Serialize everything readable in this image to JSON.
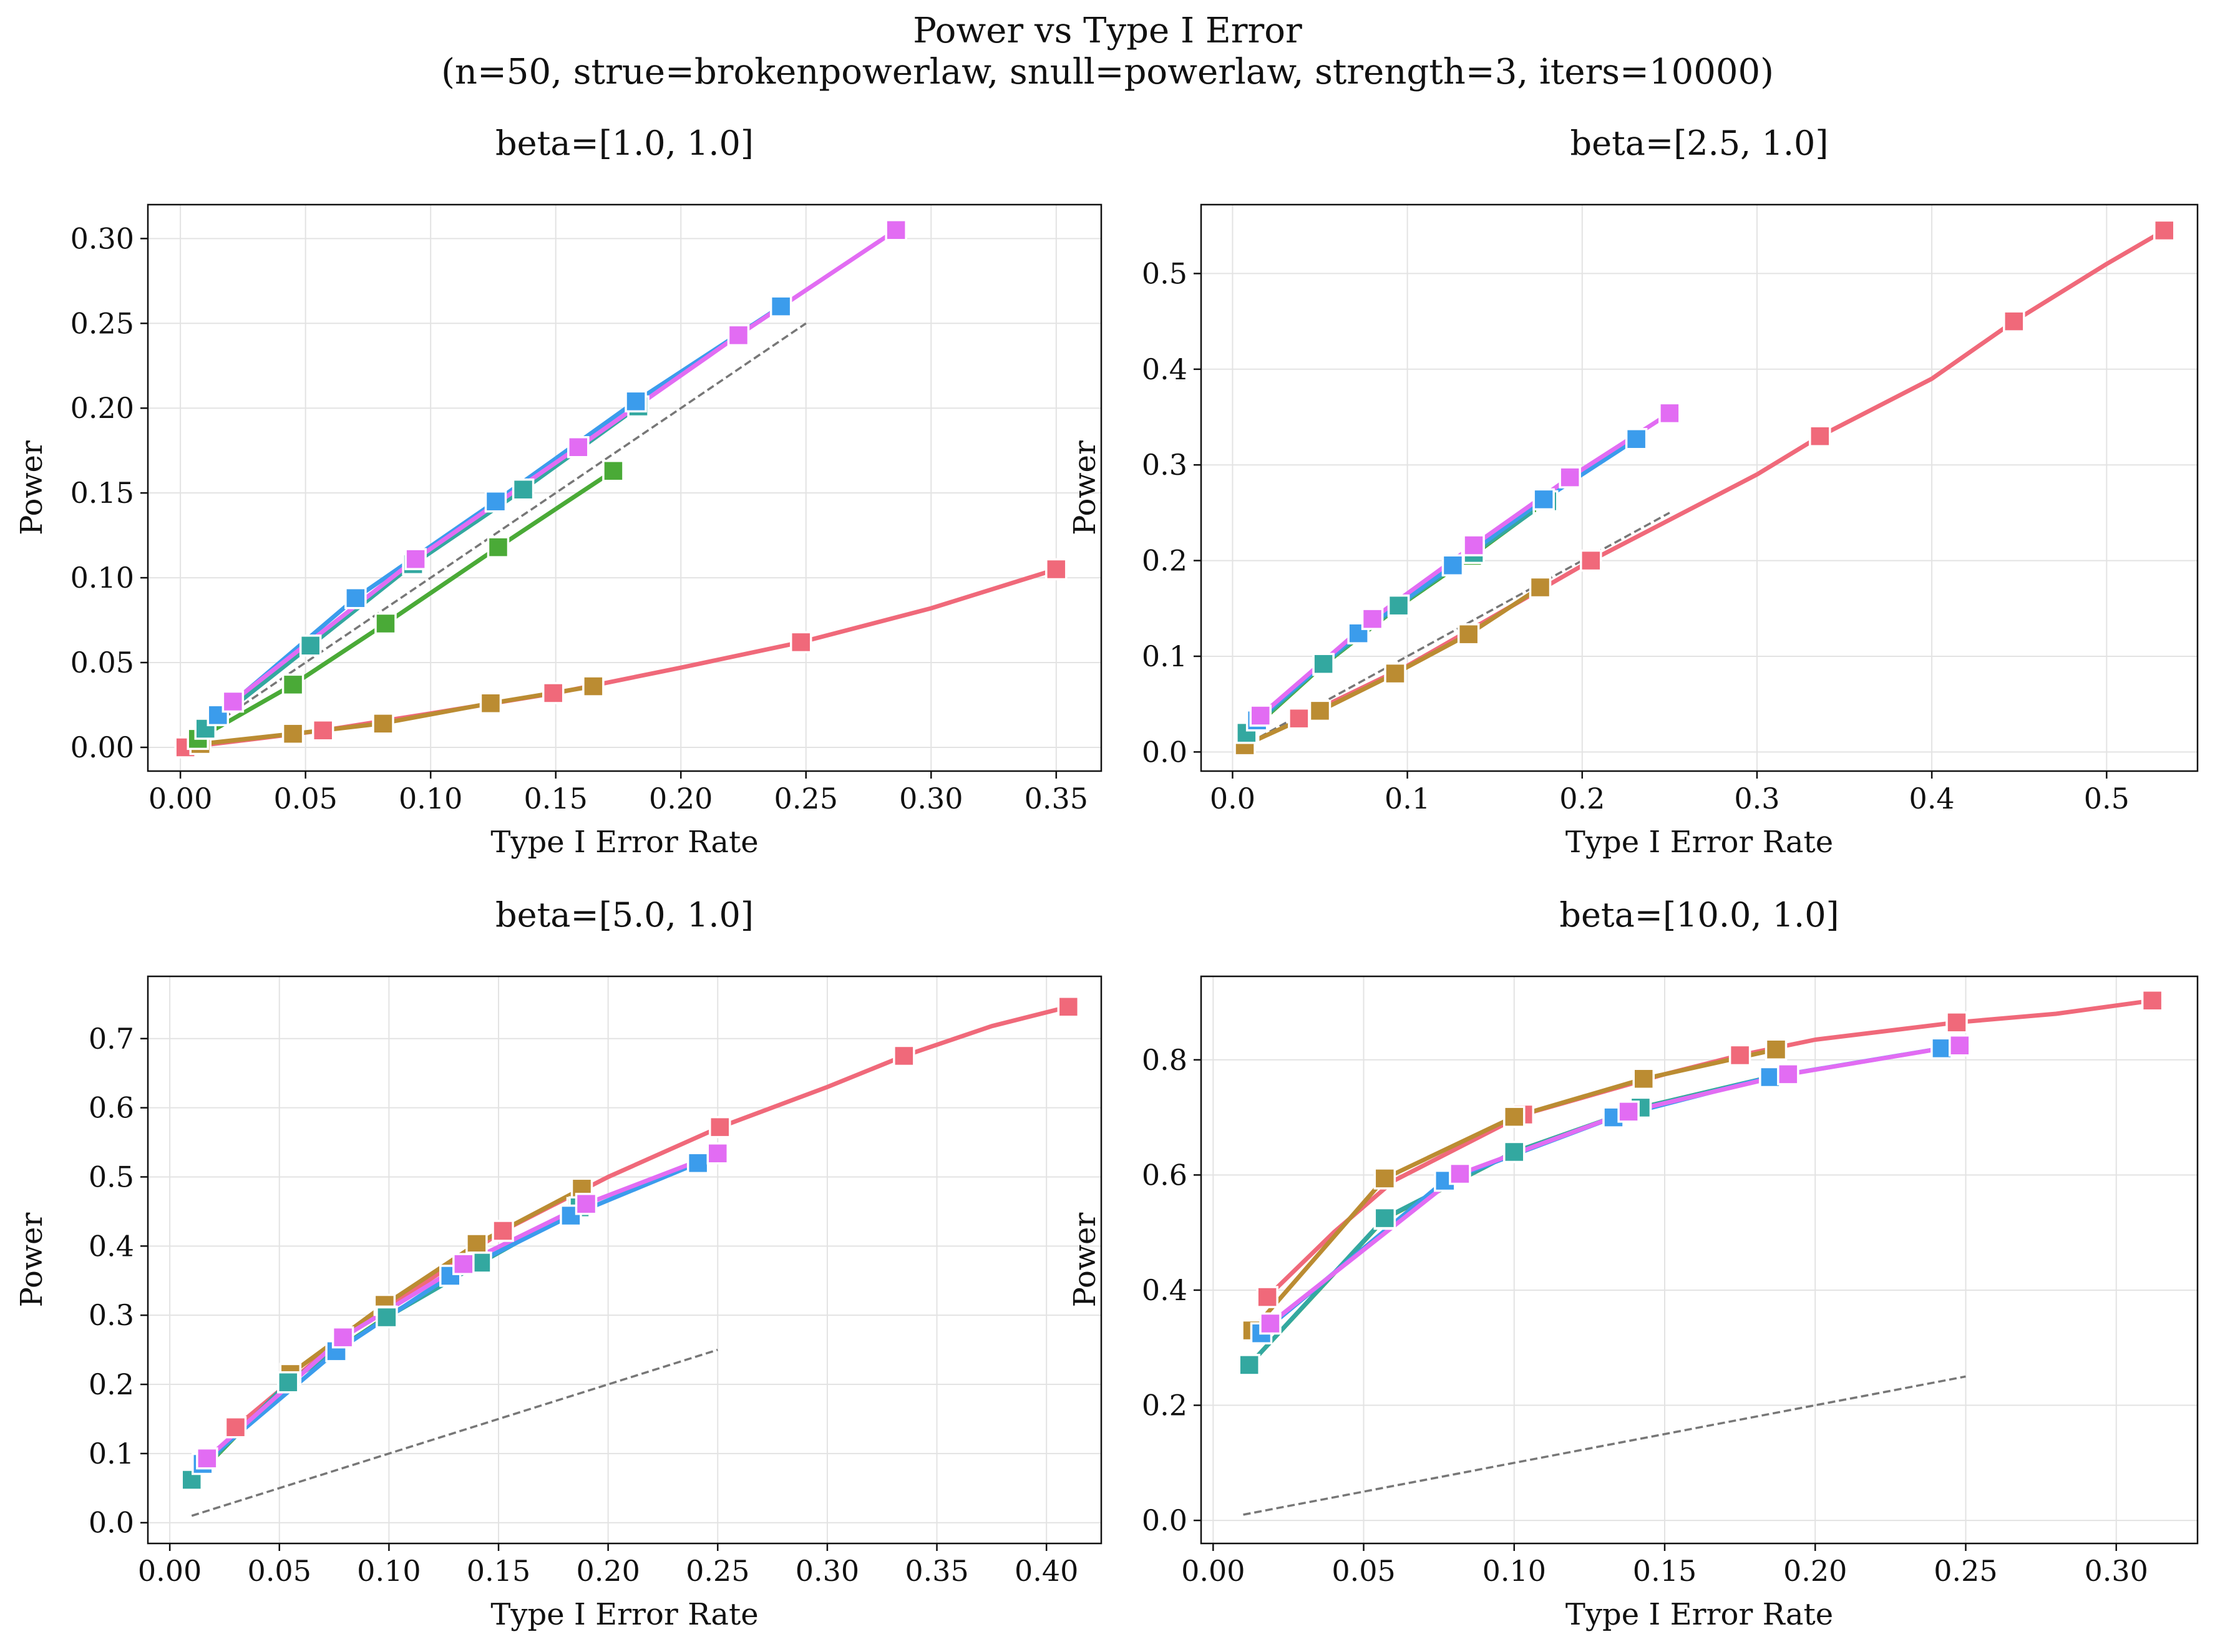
{
  "title_line1": "Power vs Type I Error",
  "title_line2": "(n=50, strue=brokenpowerlaw, snull=powerlaw, strength=3, iters=10000)",
  "colors": {
    "pink": "#F0697A",
    "olive": "#BB8C32",
    "green": "#4AAA37",
    "teal": "#33A8A0",
    "blue": "#3B9CEC",
    "magenta": "#E26CF3",
    "reference": "#777777",
    "grid": "#E3E3E3"
  },
  "chart_data": [
    {
      "type": "line",
      "title": "beta=[1.0, 1.0]",
      "xlabel": "Type I Error Rate",
      "ylabel": "Power",
      "xlim": [
        -0.013,
        0.368
      ],
      "ylim": [
        -0.014,
        0.32
      ],
      "xticks": [
        "0.00",
        "0.05",
        "0.10",
        "0.15",
        "0.20",
        "0.25",
        "0.30",
        "0.35"
      ],
      "yticks": [
        "0.00",
        "0.05",
        "0.10",
        "0.15",
        "0.20",
        "0.25",
        "0.30"
      ],
      "grid": true,
      "reference_line": {
        "x": [
          0.01,
          0.25
        ],
        "y": [
          0.01,
          0.25
        ]
      },
      "series": [
        {
          "color": "pink",
          "x": [
            0.002,
            0.03,
            0.057,
            0.1,
            0.15,
            0.2,
            0.248,
            0.3,
            0.35
          ],
          "y": [
            0.0,
            0.005,
            0.01,
            0.02,
            0.032,
            0.047,
            0.062,
            0.082,
            0.105
          ],
          "markers": [
            [
              0.002,
              0.0
            ],
            [
              0.057,
              0.01
            ],
            [
              0.149,
              0.032
            ],
            [
              0.248,
              0.062
            ],
            [
              0.35,
              0.105
            ]
          ]
        },
        {
          "color": "olive",
          "x": [
            0.008,
            0.045,
            0.08,
            0.124,
            0.165
          ],
          "y": [
            0.002,
            0.008,
            0.014,
            0.026,
            0.036
          ],
          "markers": [
            [
              0.008,
              0.002
            ],
            [
              0.045,
              0.008
            ],
            [
              0.081,
              0.014
            ],
            [
              0.124,
              0.026
            ],
            [
              0.165,
              0.036
            ]
          ]
        },
        {
          "color": "green",
          "x": [
            0.007,
            0.045,
            0.082,
            0.127,
            0.173
          ],
          "y": [
            0.005,
            0.037,
            0.073,
            0.118,
            0.163
          ],
          "markers": [
            [
              0.007,
              0.005
            ],
            [
              0.045,
              0.037
            ],
            [
              0.082,
              0.073
            ],
            [
              0.127,
              0.118
            ],
            [
              0.173,
              0.163
            ]
          ]
        },
        {
          "color": "teal",
          "x": [
            0.01,
            0.052,
            0.093,
            0.137,
            0.183
          ],
          "y": [
            0.011,
            0.06,
            0.108,
            0.152,
            0.201
          ],
          "markers": [
            [
              0.01,
              0.011
            ],
            [
              0.052,
              0.06
            ],
            [
              0.093,
              0.108
            ],
            [
              0.137,
              0.152
            ],
            [
              0.183,
              0.201
            ]
          ]
        },
        {
          "color": "blue",
          "x": [
            0.015,
            0.07,
            0.126,
            0.182,
            0.24
          ],
          "y": [
            0.019,
            0.088,
            0.145,
            0.204,
            0.26
          ],
          "markers": [
            [
              0.015,
              0.019
            ],
            [
              0.07,
              0.088
            ],
            [
              0.126,
              0.145
            ],
            [
              0.182,
              0.204
            ],
            [
              0.24,
              0.26
            ]
          ]
        },
        {
          "color": "magenta",
          "x": [
            0.021,
            0.094,
            0.159,
            0.223,
            0.286
          ],
          "y": [
            0.027,
            0.111,
            0.177,
            0.243,
            0.305
          ],
          "markers": [
            [
              0.021,
              0.027
            ],
            [
              0.094,
              0.111
            ],
            [
              0.159,
              0.177
            ],
            [
              0.223,
              0.243
            ],
            [
              0.286,
              0.305
            ]
          ]
        }
      ]
    },
    {
      "type": "line",
      "title": "beta=[2.5, 1.0]",
      "xlabel": "Type I Error Rate",
      "ylabel": "Power",
      "xlim": [
        -0.018,
        0.552
      ],
      "ylim": [
        -0.02,
        0.572
      ],
      "xticks": [
        "0.0",
        "0.1",
        "0.2",
        "0.3",
        "0.4",
        "0.5"
      ],
      "yticks": [
        "0.0",
        "0.1",
        "0.2",
        "0.3",
        "0.4",
        "0.5"
      ],
      "grid": true,
      "reference_line": {
        "x": [
          0.01,
          0.25
        ],
        "y": [
          0.01,
          0.25
        ]
      },
      "series": [
        {
          "color": "pink",
          "x": [
            0.038,
            0.1,
            0.205,
            0.3,
            0.336,
            0.4,
            0.447,
            0.5,
            0.533
          ],
          "y": [
            0.035,
            0.09,
            0.2,
            0.29,
            0.33,
            0.39,
            0.45,
            0.51,
            0.545
          ],
          "markers": [
            [
              0.038,
              0.035
            ],
            [
              0.205,
              0.2
            ],
            [
              0.336,
              0.33
            ],
            [
              0.447,
              0.45
            ],
            [
              0.533,
              0.545
            ]
          ]
        },
        {
          "color": "olive",
          "x": [
            0.007,
            0.05,
            0.093,
            0.135,
            0.176
          ],
          "y": [
            0.007,
            0.043,
            0.082,
            0.123,
            0.172
          ],
          "markers": [
            [
              0.007,
              0.007
            ],
            [
              0.05,
              0.043
            ],
            [
              0.093,
              0.082
            ],
            [
              0.135,
              0.123
            ],
            [
              0.176,
              0.172
            ]
          ]
        },
        {
          "color": "green",
          "x": [
            0.009,
            0.052,
            0.095,
            0.137,
            0.178
          ],
          "y": [
            0.02,
            0.091,
            0.152,
            0.205,
            0.26
          ],
          "markers": [
            [
              0.009,
              0.02
            ],
            [
              0.052,
              0.091
            ],
            [
              0.095,
              0.152
            ],
            [
              0.137,
              0.205
            ],
            [
              0.178,
              0.26
            ]
          ]
        },
        {
          "color": "teal",
          "x": [
            0.008,
            0.052,
            0.095,
            0.138,
            0.18
          ],
          "y": [
            0.02,
            0.092,
            0.153,
            0.208,
            0.262
          ],
          "markers": [
            [
              0.008,
              0.02
            ],
            [
              0.052,
              0.092
            ],
            [
              0.095,
              0.153
            ],
            [
              0.138,
              0.208
            ],
            [
              0.18,
              0.262
            ]
          ]
        },
        {
          "color": "blue",
          "x": [
            0.014,
            0.072,
            0.126,
            0.178,
            0.231
          ],
          "y": [
            0.033,
            0.124,
            0.195,
            0.264,
            0.327
          ],
          "markers": [
            [
              0.014,
              0.033
            ],
            [
              0.072,
              0.124
            ],
            [
              0.126,
              0.195
            ],
            [
              0.178,
              0.264
            ],
            [
              0.231,
              0.327
            ]
          ]
        },
        {
          "color": "magenta",
          "x": [
            0.016,
            0.08,
            0.138,
            0.193,
            0.25
          ],
          "y": [
            0.038,
            0.139,
            0.216,
            0.287,
            0.354
          ],
          "markers": [
            [
              0.016,
              0.038
            ],
            [
              0.08,
              0.139
            ],
            [
              0.138,
              0.216
            ],
            [
              0.193,
              0.287
            ],
            [
              0.25,
              0.354
            ]
          ]
        }
      ]
    },
    {
      "type": "line",
      "title": "beta=[5.0, 1.0]",
      "xlabel": "Type I Error Rate",
      "ylabel": "Power",
      "xlim": [
        -0.01,
        0.425
      ],
      "ylim": [
        -0.03,
        0.79
      ],
      "xticks": [
        "0.00",
        "0.05",
        "0.10",
        "0.15",
        "0.20",
        "0.25",
        "0.30",
        "0.35",
        "0.40"
      ],
      "yticks": [
        "0.0",
        "0.1",
        "0.2",
        "0.3",
        "0.4",
        "0.5",
        "0.6",
        "0.7"
      ],
      "grid": true,
      "reference_line": {
        "x": [
          0.01,
          0.25
        ],
        "y": [
          0.01,
          0.25
        ]
      },
      "series": [
        {
          "color": "pink",
          "x": [
            0.03,
            0.08,
            0.152,
            0.2,
            0.251,
            0.3,
            0.335,
            0.375,
            0.41
          ],
          "y": [
            0.138,
            0.27,
            0.422,
            0.5,
            0.572,
            0.63,
            0.675,
            0.718,
            0.746
          ],
          "markers": [
            [
              0.03,
              0.138
            ],
            [
              0.152,
              0.422
            ],
            [
              0.251,
              0.572
            ],
            [
              0.335,
              0.675
            ],
            [
              0.41,
              0.746
            ]
          ]
        },
        {
          "color": "olive",
          "x": [
            0.055,
            0.098,
            0.14,
            0.188
          ],
          "y": [
            0.215,
            0.315,
            0.403,
            0.483
          ],
          "markers": [
            [
              0.055,
              0.215
            ],
            [
              0.098,
              0.315
            ],
            [
              0.14,
              0.403
            ],
            [
              0.188,
              0.483
            ]
          ]
        },
        {
          "color": "green",
          "x": [
            0.01,
            0.054,
            0.099,
            0.141,
            0.186
          ],
          "y": [
            0.06,
            0.203,
            0.298,
            0.376,
            0.455
          ],
          "markers": [
            [
              0.01,
              0.06
            ],
            [
              0.054,
              0.203
            ],
            [
              0.099,
              0.298
            ],
            [
              0.141,
              0.376
            ],
            [
              0.186,
              0.455
            ]
          ]
        },
        {
          "color": "teal",
          "x": [
            0.01,
            0.054,
            0.099,
            0.142,
            0.187
          ],
          "y": [
            0.062,
            0.203,
            0.297,
            0.376,
            0.456
          ],
          "markers": [
            [
              0.01,
              0.062
            ],
            [
              0.054,
              0.203
            ],
            [
              0.099,
              0.297
            ],
            [
              0.142,
              0.376
            ],
            [
              0.187,
              0.456
            ]
          ]
        },
        {
          "color": "blue",
          "x": [
            0.015,
            0.076,
            0.128,
            0.183,
            0.241
          ],
          "y": [
            0.085,
            0.248,
            0.357,
            0.444,
            0.52
          ],
          "markers": [
            [
              0.015,
              0.085
            ],
            [
              0.076,
              0.248
            ],
            [
              0.128,
              0.357
            ],
            [
              0.183,
              0.444
            ],
            [
              0.241,
              0.52
            ]
          ]
        },
        {
          "color": "magenta",
          "x": [
            0.017,
            0.079,
            0.134,
            0.19,
            0.25
          ],
          "y": [
            0.093,
            0.268,
            0.374,
            0.461,
            0.534
          ],
          "markers": [
            [
              0.017,
              0.093
            ],
            [
              0.079,
              0.268
            ],
            [
              0.134,
              0.374
            ],
            [
              0.19,
              0.461
            ],
            [
              0.25,
              0.534
            ]
          ]
        }
      ]
    },
    {
      "type": "line",
      "title": "beta=[10.0, 1.0]",
      "xlabel": "Type I Error Rate",
      "ylabel": "Power",
      "xlim": [
        -0.004,
        0.327
      ],
      "ylim": [
        -0.04,
        0.945
      ],
      "xticks": [
        "0.00",
        "0.05",
        "0.10",
        "0.15",
        "0.20",
        "0.25",
        "0.30"
      ],
      "yticks": [
        "0.0",
        "0.2",
        "0.4",
        "0.6",
        "0.8"
      ],
      "grid": true,
      "reference_line": {
        "x": [
          0.01,
          0.25
        ],
        "y": [
          0.01,
          0.25
        ]
      },
      "series": [
        {
          "color": "pink",
          "x": [
            0.018,
            0.04,
            0.06,
            0.103,
            0.15,
            0.175,
            0.2,
            0.247,
            0.28,
            0.312
          ],
          "y": [
            0.388,
            0.5,
            0.59,
            0.705,
            0.775,
            0.808,
            0.835,
            0.865,
            0.88,
            0.903
          ],
          "markers": [
            [
              0.018,
              0.388
            ],
            [
              0.103,
              0.705
            ],
            [
              0.175,
              0.808
            ],
            [
              0.247,
              0.865
            ],
            [
              0.312,
              0.903
            ]
          ]
        },
        {
          "color": "olive",
          "x": [
            0.013,
            0.057,
            0.1,
            0.143,
            0.187
          ],
          "y": [
            0.33,
            0.594,
            0.701,
            0.767,
            0.818
          ],
          "markers": [
            [
              0.013,
              0.33
            ],
            [
              0.057,
              0.594
            ],
            [
              0.1,
              0.701
            ],
            [
              0.143,
              0.767
            ],
            [
              0.187,
              0.818
            ]
          ]
        },
        {
          "color": "green",
          "x": [
            0.012,
            0.057,
            0.1,
            0.142,
            0.185
          ],
          "y": [
            0.27,
            0.524,
            0.64,
            0.717,
            0.77
          ],
          "markers": [
            [
              0.012,
              0.27
            ],
            [
              0.057,
              0.524
            ],
            [
              0.1,
              0.64
            ],
            [
              0.142,
              0.717
            ],
            [
              0.185,
              0.77
            ]
          ]
        },
        {
          "color": "teal",
          "x": [
            0.012,
            0.057,
            0.1,
            0.142,
            0.185
          ],
          "y": [
            0.27,
            0.525,
            0.64,
            0.717,
            0.77
          ],
          "markers": [
            [
              0.012,
              0.27
            ],
            [
              0.057,
              0.525
            ],
            [
              0.1,
              0.64
            ],
            [
              0.142,
              0.717
            ],
            [
              0.185,
              0.77
            ]
          ]
        },
        {
          "color": "blue",
          "x": [
            0.016,
            0.077,
            0.133,
            0.185,
            0.242
          ],
          "y": [
            0.325,
            0.59,
            0.7,
            0.77,
            0.82
          ],
          "markers": [
            [
              0.016,
              0.325
            ],
            [
              0.077,
              0.59
            ],
            [
              0.133,
              0.7
            ],
            [
              0.185,
              0.77
            ],
            [
              0.242,
              0.82
            ]
          ]
        },
        {
          "color": "magenta",
          "x": [
            0.019,
            0.082,
            0.138,
            0.191,
            0.248
          ],
          "y": [
            0.342,
            0.602,
            0.71,
            0.775,
            0.825
          ],
          "markers": [
            [
              0.019,
              0.342
            ],
            [
              0.082,
              0.602
            ],
            [
              0.138,
              0.71
            ],
            [
              0.191,
              0.775
            ],
            [
              0.248,
              0.825
            ]
          ]
        }
      ]
    }
  ]
}
